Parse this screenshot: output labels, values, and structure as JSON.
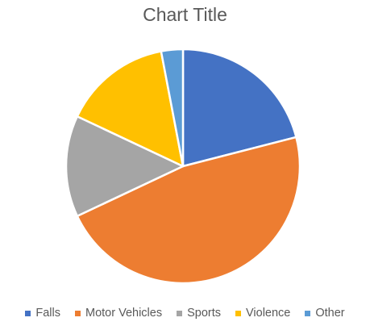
{
  "chart_data": {
    "type": "pie",
    "title": "Chart Title",
    "categories": [
      "Falls",
      "Motor Vehicles",
      "Sports",
      "Violence",
      "Other"
    ],
    "values": [
      21,
      47,
      14,
      15,
      3
    ],
    "colors": [
      "#4472C4",
      "#ED7D31",
      "#A5A5A5",
      "#FFC000",
      "#5B9BD5"
    ],
    "legend_position": "bottom",
    "start_angle": "top, clockwise"
  }
}
